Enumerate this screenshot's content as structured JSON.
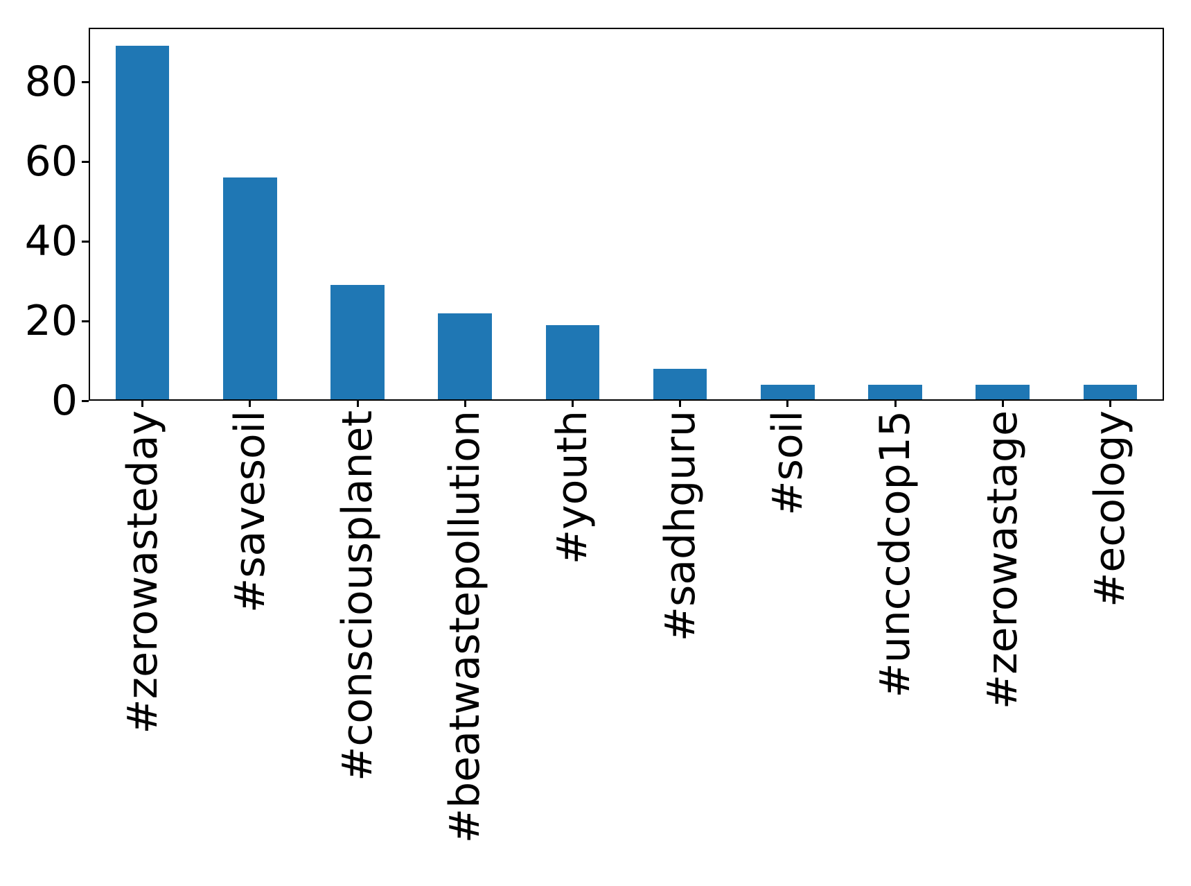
{
  "chart_data": {
    "type": "bar",
    "title": "",
    "xlabel": "",
    "ylabel": "",
    "categories": [
      "#zerowasteday",
      "#savesoil",
      "#consciousplanet",
      "#beatwastepollution",
      "#youth",
      "#sadhguru",
      "#soil",
      "#unccdcop15",
      "#zerowastage",
      "#ecology"
    ],
    "values": [
      89,
      56,
      29,
      22,
      19,
      8,
      4,
      4,
      4,
      4
    ],
    "yticks": [
      0,
      20,
      40,
      60,
      80
    ],
    "ylim": [
      0,
      93.6
    ],
    "bar_color": "#1f77b4",
    "bar_width_fraction": 0.5,
    "grid": false,
    "legend": "none",
    "tick_label_rotation_deg": 90,
    "axis_color": "#000000",
    "text_color": "#000000",
    "background_color": "#ffffff"
  }
}
